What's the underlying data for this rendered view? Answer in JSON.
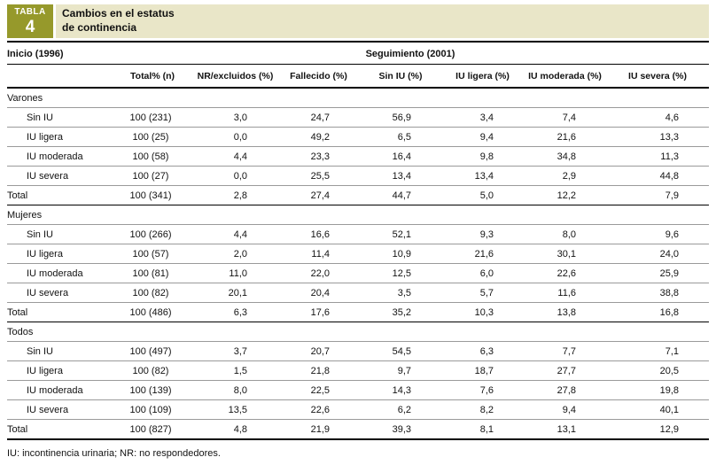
{
  "badge": {
    "label": "TABLA",
    "number": "4"
  },
  "title_lines": [
    "Cambios en el estatus",
    "de continencia"
  ],
  "header": {
    "inicio": "Inicio (1996)",
    "seguimiento": "Seguimiento (2001)",
    "columns": [
      "Total% (n)",
      "NR/excluidos (%)",
      "Fallecido (%)",
      "Sin IU (%)",
      "IU ligera (%)",
      "IU moderada (%)",
      "IU severa (%)"
    ]
  },
  "sections": [
    {
      "name": "Varones",
      "rows": [
        {
          "label": "Sin IU",
          "values": [
            "100 (231)",
            "3,0",
            "24,7",
            "56,9",
            "3,4",
            "7,4",
            "4,6"
          ]
        },
        {
          "label": "IU ligera",
          "values": [
            "100 (25)",
            "0,0",
            "49,2",
            "6,5",
            "9,4",
            "21,6",
            "13,3"
          ]
        },
        {
          "label": "IU moderada",
          "values": [
            "100 (58)",
            "4,4",
            "23,3",
            "16,4",
            "9,8",
            "34,8",
            "11,3"
          ]
        },
        {
          "label": "IU severa",
          "values": [
            "100 (27)",
            "0,0",
            "25,5",
            "13,4",
            "13,4",
            "2,9",
            "44,8"
          ]
        }
      ],
      "total": {
        "label": "Total",
        "values": [
          "100 (341)",
          "2,8",
          "27,4",
          "44,7",
          "5,0",
          "12,2",
          "7,9"
        ]
      }
    },
    {
      "name": "Mujeres",
      "rows": [
        {
          "label": "Sin IU",
          "values": [
            "100 (266)",
            "4,4",
            "16,6",
            "52,1",
            "9,3",
            "8,0",
            "9,6"
          ]
        },
        {
          "label": "IU ligera",
          "values": [
            "100 (57)",
            "2,0",
            "11,4",
            "10,9",
            "21,6",
            "30,1",
            "24,0"
          ]
        },
        {
          "label": "IU moderada",
          "values": [
            "100 (81)",
            "11,0",
            "22,0",
            "12,5",
            "6,0",
            "22,6",
            "25,9"
          ]
        },
        {
          "label": "IU severa",
          "values": [
            "100 (82)",
            "20,1",
            "20,4",
            "3,5",
            "5,7",
            "11,6",
            "38,8"
          ]
        }
      ],
      "total": {
        "label": "Total",
        "values": [
          "100 (486)",
          "6,3",
          "17,6",
          "35,2",
          "10,3",
          "13,8",
          "16,8"
        ]
      }
    },
    {
      "name": "Todos",
      "rows": [
        {
          "label": "Sin IU",
          "values": [
            "100 (497)",
            "3,7",
            "20,7",
            "54,5",
            "6,3",
            "7,7",
            "7,1"
          ]
        },
        {
          "label": "IU ligera",
          "values": [
            "100 (82)",
            "1,5",
            "21,8",
            "9,7",
            "18,7",
            "27,7",
            "20,5"
          ]
        },
        {
          "label": "IU moderada",
          "values": [
            "100 (139)",
            "8,0",
            "22,5",
            "14,3",
            "7,6",
            "27,8",
            "19,8"
          ]
        },
        {
          "label": "IU severa",
          "values": [
            "100 (109)",
            "13,5",
            "22,6",
            "6,2",
            "8,2",
            "9,4",
            "40,1"
          ]
        }
      ],
      "total": {
        "label": "Total",
        "values": [
          "100 (827)",
          "4,8",
          "21,9",
          "39,3",
          "8,1",
          "13,1",
          "12,9"
        ]
      }
    }
  ],
  "footnote": "IU: incontinencia urinaria; NR: no respondedores.",
  "colors": {
    "badge_bg": "#96992b",
    "title_band_bg": "#e9e6c8"
  }
}
